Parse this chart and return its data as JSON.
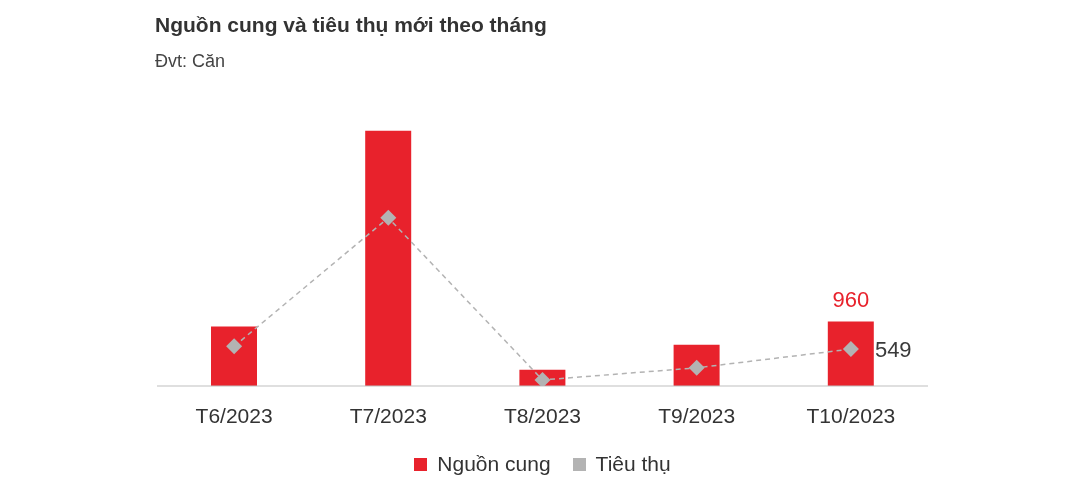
{
  "chart_data": {
    "type": "bar",
    "title": "Nguồn cung và tiêu thụ mới theo tháng",
    "subtitle": "Đvt: Căn",
    "categories": [
      "T6/2023",
      "T7/2023",
      "T8/2023",
      "T9/2023",
      "T10/2023"
    ],
    "series": [
      {
        "name": "Nguồn cung",
        "color": "#e8222c",
        "values": [
          885,
          3795,
          240,
          615,
          960
        ],
        "value_labels": [
          null,
          null,
          null,
          null,
          "960"
        ]
      },
      {
        "name": "Tiêu thụ",
        "type": "line",
        "color": "#b3b3b3",
        "values": [
          590,
          2500,
          90,
          270,
          549
        ],
        "value_labels": [
          null,
          null,
          null,
          null,
          "549"
        ],
        "marker": "diamond",
        "line_style": "dashed"
      }
    ],
    "legend": "bottom",
    "grid": false
  }
}
